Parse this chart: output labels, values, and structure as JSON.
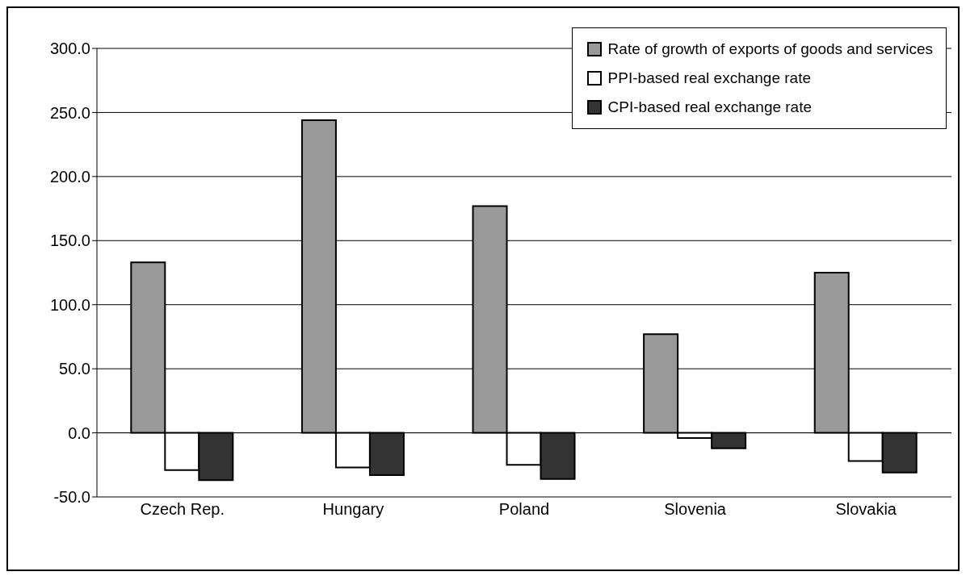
{
  "chart_data": {
    "type": "bar",
    "categories": [
      "Czech Rep.",
      "Hungary",
      "Poland",
      "Slovenia",
      "Slovakia"
    ],
    "series": [
      {
        "name": "Rate of growth of exports of goods and services",
        "color": "#999999",
        "values": [
          133,
          244,
          177,
          77,
          125
        ]
      },
      {
        "name": "PPI-based real exchange rate",
        "color": "#ffffff",
        "values": [
          -29,
          -27,
          -25,
          -4,
          -22
        ]
      },
      {
        "name": "CPI-based real exchange rate",
        "color": "#333333",
        "values": [
          -37,
          -33,
          -36,
          -12,
          -31
        ]
      }
    ],
    "ylim": [
      -50,
      300
    ],
    "yticks": [
      {
        "value": -50,
        "label": "-50.0"
      },
      {
        "value": 0,
        "label": "0.0"
      },
      {
        "value": 50,
        "label": "50.0"
      },
      {
        "value": 100,
        "label": "100.0"
      },
      {
        "value": 150,
        "label": "150.0"
      },
      {
        "value": 200,
        "label": "200.0"
      },
      {
        "value": 250,
        "label": "250.0"
      },
      {
        "value": 300,
        "label": "300.0"
      }
    ],
    "grid": "y",
    "legend": "top right"
  }
}
